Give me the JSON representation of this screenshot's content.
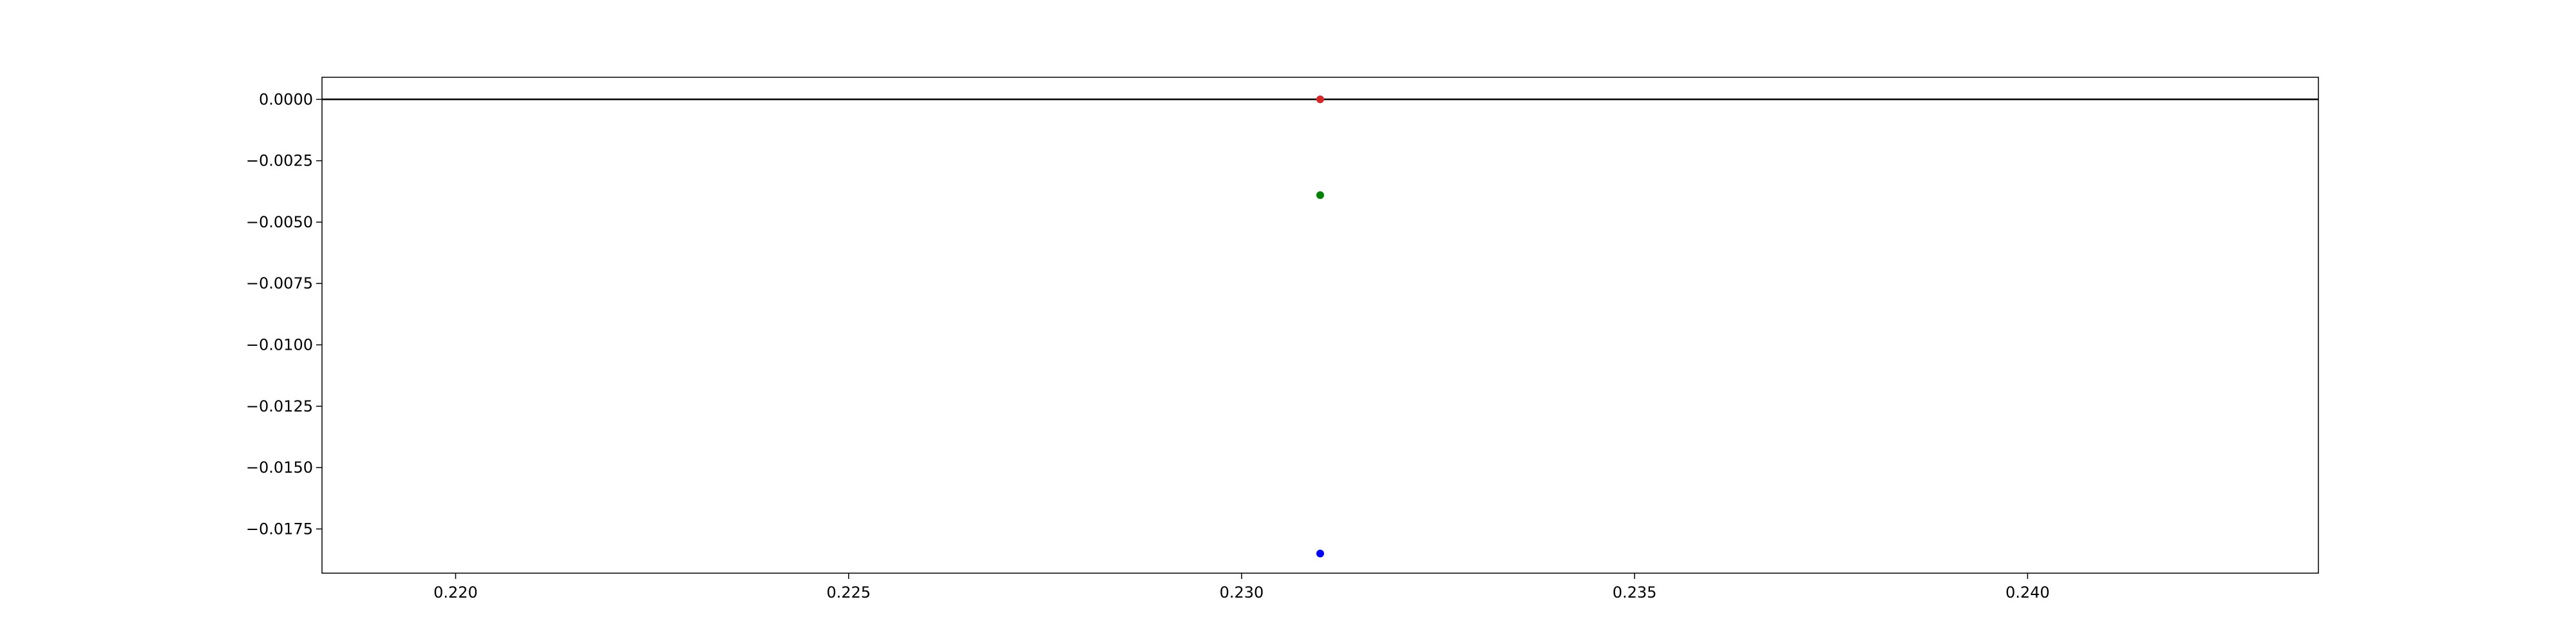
{
  "chart_data": {
    "type": "scatter",
    "title": "",
    "xlabel": "",
    "ylabel": "",
    "xlim": [
      0.2183,
      0.2437
    ],
    "ylim": [
      -0.0193,
      0.0009
    ],
    "x_ticks": [
      0.22,
      0.225,
      0.23,
      0.235,
      0.24
    ],
    "x_tick_labels": [
      "0.220",
      "0.225",
      "0.230",
      "0.235",
      "0.240"
    ],
    "y_ticks": [
      0.0,
      -0.0025,
      -0.005,
      -0.0075,
      -0.01,
      -0.0125,
      -0.015,
      -0.0175
    ],
    "y_tick_labels": [
      "0.0000",
      "−0.0025",
      "−0.0050",
      "−0.0075",
      "−0.0100",
      "−0.0125",
      "−0.0150",
      "−0.0175"
    ],
    "hline": {
      "y": 0.0,
      "color": "#000000"
    },
    "points": [
      {
        "x": 0.231,
        "y": 0.0,
        "color": "#d62728"
      },
      {
        "x": 0.231,
        "y": -0.0039,
        "color": "#008000"
      },
      {
        "x": 0.231,
        "y": -0.0185,
        "color": "#0000ff"
      }
    ],
    "grid": false,
    "legend": "none"
  }
}
